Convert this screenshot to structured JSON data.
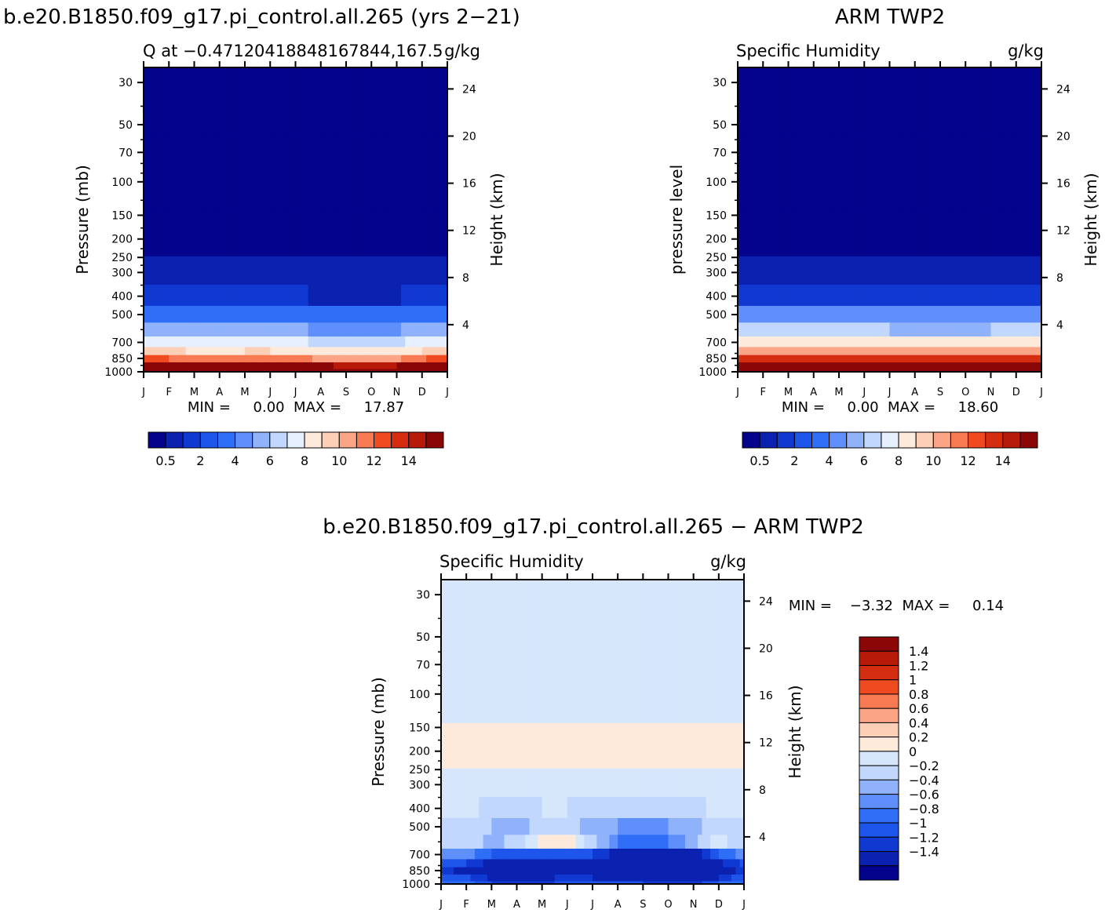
{
  "figure": {
    "top_left_title": "b.e20.B1850.f09_g17.pi_control.all.265 (yrs 2−21)",
    "top_right_title": "ARM TWP2",
    "bottom_title": "b.e20.B1850.f09_g17.pi_control.all.265 − ARM TWP2"
  },
  "chart_data": [
    {
      "type": "heatmap",
      "panel": "model",
      "subtitle": "Q at −0.47120418848167844,167.5",
      "units": "g/kg",
      "ylabel": "Pressure (mb)",
      "ylabel_right": "Height (km)",
      "xlabel": "",
      "x_categories": [
        "J",
        "F",
        "M",
        "A",
        "M",
        "J",
        "J",
        "A",
        "S",
        "O",
        "N",
        "D",
        "J"
      ],
      "y_ticks": [
        30,
        50,
        70,
        100,
        150,
        200,
        250,
        300,
        400,
        500,
        700,
        850,
        1000
      ],
      "y_range": [
        1000,
        25
      ],
      "y_scale": "log",
      "right_ticks_km": [
        4,
        8,
        12,
        16,
        20,
        24
      ],
      "stats_text": "MIN =     0.00  MAX =     17.87",
      "min": 0.0,
      "max": 17.87,
      "colorbar": {
        "colors": [
          "#03038c",
          "#0b21b0",
          "#1039d2",
          "#1e55ea",
          "#2f6ef7",
          "#5e8ffa",
          "#8fb2fb",
          "#c2d7fd",
          "#e6f0fe",
          "#feeadb",
          "#fccfb6",
          "#fba486",
          "#f87a52",
          "#f04b20",
          "#d42d10",
          "#b81a0a",
          "#8b0606"
        ],
        "labels": [
          "0.5",
          "2",
          "4",
          "6",
          "8",
          "10",
          "12",
          "14"
        ]
      },
      "data": {
        "times": [
          "J",
          "F",
          "M",
          "A",
          "M",
          "J",
          "J",
          "A",
          "S",
          "O",
          "N",
          "D",
          "J"
        ],
        "levels": [
          1000,
          925,
          850,
          775,
          700,
          600,
          500,
          400,
          300,
          200,
          100,
          30
        ],
        "values": [
          [
            17.5,
            17.3,
            17.0,
            17.0,
            17.1,
            17.2,
            17.1,
            16.9,
            16.8,
            16.8,
            16.9,
            17.2,
            17.5
          ],
          [
            15.0,
            14.7,
            14.3,
            14.3,
            14.5,
            14.6,
            14.4,
            14.1,
            13.9,
            13.9,
            14.0,
            14.5,
            15.0
          ],
          [
            11.6,
            11.0,
            10.5,
            10.5,
            10.7,
            10.8,
            10.4,
            9.8,
            9.4,
            9.4,
            9.8,
            10.8,
            11.6
          ],
          [
            8.5,
            8.2,
            7.9,
            7.9,
            8.0,
            8.0,
            7.7,
            7.3,
            7.0,
            7.0,
            7.3,
            8.0,
            8.5
          ],
          [
            6.9,
            6.7,
            6.4,
            6.4,
            6.5,
            6.5,
            6.2,
            5.8,
            5.5,
            5.5,
            5.8,
            6.5,
            6.9
          ],
          [
            4.8,
            4.6,
            4.3,
            4.3,
            4.4,
            4.4,
            4.2,
            3.8,
            3.5,
            3.5,
            3.9,
            4.4,
            4.8
          ],
          [
            3.0,
            2.9,
            2.7,
            2.7,
            2.8,
            2.7,
            2.5,
            2.3,
            2.1,
            2.1,
            2.3,
            2.8,
            3.0
          ],
          [
            1.3,
            1.25,
            1.15,
            1.15,
            1.2,
            1.15,
            1.05,
            0.95,
            0.85,
            0.85,
            0.95,
            1.15,
            1.3
          ],
          [
            0.42,
            0.4,
            0.38,
            0.38,
            0.39,
            0.37,
            0.34,
            0.31,
            0.28,
            0.28,
            0.31,
            0.37,
            0.42
          ],
          [
            0.05,
            0.05,
            0.05,
            0.05,
            0.05,
            0.05,
            0.05,
            0.05,
            0.05,
            0.05,
            0.05,
            0.05,
            0.05
          ],
          [
            0.0,
            0.0,
            0.0,
            0.0,
            0.0,
            0.0,
            0.0,
            0.0,
            0.0,
            0.0,
            0.0,
            0.0,
            0.0
          ],
          [
            0.0,
            0.0,
            0.0,
            0.0,
            0.0,
            0.0,
            0.0,
            0.0,
            0.0,
            0.0,
            0.0,
            0.0,
            0.0
          ]
        ]
      }
    },
    {
      "type": "heatmap",
      "panel": "obs",
      "subtitle": "Specific Humidity",
      "units": "g/kg",
      "ylabel": "pressure level",
      "ylabel_right": "Height (km)",
      "xlabel": "",
      "x_categories": [
        "J",
        "F",
        "M",
        "A",
        "M",
        "J",
        "J",
        "A",
        "S",
        "O",
        "N",
        "D",
        "J"
      ],
      "y_ticks": [
        30,
        50,
        70,
        100,
        150,
        200,
        250,
        300,
        400,
        500,
        700,
        850,
        1000
      ],
      "y_range": [
        1000,
        25
      ],
      "y_scale": "log",
      "right_ticks_km": [
        4,
        8,
        12,
        16,
        20,
        24
      ],
      "stats_text": "MIN =     0.00  MAX =     18.60",
      "min": 0.0,
      "max": 18.6,
      "colorbar": {
        "colors": [
          "#03038c",
          "#0b21b0",
          "#1039d2",
          "#1e55ea",
          "#2f6ef7",
          "#5e8ffa",
          "#8fb2fb",
          "#c2d7fd",
          "#e6f0fe",
          "#feeadb",
          "#fccfb6",
          "#fba486",
          "#f87a52",
          "#f04b20",
          "#d42d10",
          "#b81a0a",
          "#8b0606"
        ],
        "labels": [
          "0.5",
          "2",
          "4",
          "6",
          "8",
          "10",
          "12",
          "14"
        ]
      },
      "data": {
        "times": [
          "J",
          "F",
          "M",
          "A",
          "M",
          "J",
          "J",
          "A",
          "S",
          "O",
          "N",
          "D",
          "J"
        ],
        "levels": [
          1000,
          925,
          850,
          775,
          700,
          600,
          500,
          400,
          300,
          200,
          100,
          30
        ],
        "values": [
          [
            18.3,
            18.2,
            18.2,
            18.3,
            18.4,
            18.3,
            18.2,
            18.1,
            18.0,
            18.1,
            18.2,
            18.2,
            18.3
          ],
          [
            16.0,
            15.8,
            15.8,
            15.9,
            16.0,
            15.9,
            15.8,
            15.7,
            15.6,
            15.7,
            15.8,
            15.9,
            16.0
          ],
          [
            12.8,
            12.6,
            12.6,
            12.8,
            12.9,
            12.7,
            12.6,
            12.5,
            12.4,
            12.5,
            12.6,
            12.7,
            12.8
          ],
          [
            9.6,
            9.4,
            9.4,
            9.6,
            9.7,
            9.5,
            9.4,
            9.3,
            9.2,
            9.3,
            9.4,
            9.5,
            9.6
          ],
          [
            7.6,
            7.4,
            7.4,
            7.6,
            7.7,
            7.5,
            7.4,
            7.3,
            7.2,
            7.3,
            7.4,
            7.5,
            7.6
          ],
          [
            5.2,
            5.0,
            5.0,
            5.2,
            5.3,
            5.1,
            5.0,
            4.9,
            4.8,
            4.9,
            5.0,
            5.1,
            5.2
          ],
          [
            3.3,
            3.2,
            3.2,
            3.3,
            3.4,
            3.3,
            3.2,
            3.1,
            3.0,
            3.1,
            3.2,
            3.3,
            3.3
          ],
          [
            1.4,
            1.35,
            1.35,
            1.4,
            1.45,
            1.4,
            1.35,
            1.3,
            1.25,
            1.3,
            1.35,
            1.4,
            1.4
          ],
          [
            0.45,
            0.44,
            0.44,
            0.45,
            0.46,
            0.45,
            0.44,
            0.43,
            0.42,
            0.43,
            0.44,
            0.45,
            0.45
          ],
          [
            0.05,
            0.05,
            0.05,
            0.05,
            0.05,
            0.05,
            0.05,
            0.05,
            0.05,
            0.05,
            0.05,
            0.05,
            0.05
          ],
          [
            0.0,
            0.0,
            0.0,
            0.0,
            0.0,
            0.0,
            0.0,
            0.0,
            0.0,
            0.0,
            0.0,
            0.0,
            0.0
          ],
          [
            0.0,
            0.0,
            0.0,
            0.0,
            0.0,
            0.0,
            0.0,
            0.0,
            0.0,
            0.0,
            0.0,
            0.0,
            0.0
          ]
        ]
      }
    },
    {
      "type": "heatmap",
      "panel": "diff",
      "subtitle": "Specific Humidity",
      "units": "g/kg",
      "ylabel": "Pressure (mb)",
      "ylabel_right": "Height (km)",
      "xlabel": "",
      "x_categories": [
        "J",
        "F",
        "M",
        "A",
        "M",
        "J",
        "J",
        "A",
        "S",
        "O",
        "N",
        "D",
        "J"
      ],
      "y_ticks": [
        30,
        50,
        70,
        100,
        150,
        200,
        250,
        300,
        400,
        500,
        700,
        850,
        1000
      ],
      "y_range": [
        1000,
        25
      ],
      "y_scale": "log",
      "right_ticks_km": [
        4,
        8,
        12,
        16,
        20,
        24
      ],
      "stats_text": "MIN =    −3.32  MAX =     0.14",
      "min": -3.32,
      "max": 0.14,
      "colorbar": {
        "colors": [
          "#03038c",
          "#0b21b0",
          "#1039d2",
          "#1e55ea",
          "#2f6ef7",
          "#5e8ffa",
          "#8fb2fb",
          "#c2d7fd",
          "#d6e7fc",
          "#feeadb",
          "#fccfb6",
          "#fba486",
          "#f87a52",
          "#f04b20",
          "#d42d10",
          "#b81a0a",
          "#8b0606"
        ],
        "labels": [
          "1.4",
          "1.2",
          "1",
          "0.8",
          "0.6",
          "0.4",
          "0.2",
          "0",
          "−0.2",
          "−0.4",
          "−0.6",
          "−0.8",
          "−1",
          "−1.2",
          "−1.4"
        ]
      },
      "data": {
        "times": [
          "J",
          "F",
          "M",
          "A",
          "M",
          "J",
          "J",
          "A",
          "S",
          "O",
          "N",
          "D",
          "J"
        ],
        "levels": [
          1000,
          925,
          850,
          775,
          700,
          600,
          500,
          400,
          300,
          200,
          100,
          30
        ],
        "values": [
          [
            -0.8,
            -0.9,
            -1.2,
            -1.3,
            -1.3,
            -1.1,
            -1.1,
            -1.2,
            -1.2,
            -1.3,
            -1.3,
            -1.0,
            -0.8
          ],
          [
            -1.0,
            -1.1,
            -1.5,
            -1.6,
            -1.5,
            -1.3,
            -1.4,
            -1.6,
            -1.7,
            -1.8,
            -1.8,
            -1.4,
            -1.0
          ],
          [
            -1.2,
            -1.6,
            -2.1,
            -2.3,
            -2.2,
            -1.9,
            -2.2,
            -2.7,
            -3.0,
            -3.1,
            -2.8,
            -1.9,
            -1.2
          ],
          [
            -1.1,
            -1.2,
            -1.5,
            -1.7,
            -1.7,
            -1.5,
            -1.7,
            -2.0,
            -2.2,
            -2.3,
            -2.1,
            -1.5,
            -1.1
          ],
          [
            -0.7,
            -0.7,
            -1.0,
            -1.2,
            -1.2,
            -1.0,
            -1.2,
            -1.5,
            -1.7,
            -1.8,
            -1.6,
            -1.0,
            -0.7
          ],
          [
            -0.4,
            -0.2,
            -0.5,
            -0.3,
            0.05,
            0.1,
            -0.3,
            -0.8,
            -0.9,
            -0.8,
            -0.5,
            -0.1,
            -0.4
          ],
          [
            -0.3,
            -0.2,
            -0.4,
            -0.5,
            -0.3,
            -0.3,
            -0.5,
            -0.6,
            -0.7,
            -0.6,
            -0.5,
            -0.2,
            -0.3
          ],
          [
            -0.1,
            -0.1,
            -0.3,
            -0.3,
            -0.2,
            -0.2,
            -0.3,
            -0.3,
            -0.35,
            -0.3,
            -0.3,
            -0.1,
            -0.1
          ],
          [
            -0.05,
            -0.05,
            -0.05,
            -0.05,
            -0.05,
            -0.05,
            -0.05,
            -0.05,
            -0.05,
            -0.05,
            -0.05,
            -0.05,
            -0.05
          ],
          [
            0.05,
            0.05,
            0.05,
            0.05,
            0.05,
            0.05,
            0.02,
            0.05,
            0.05,
            0.05,
            0.05,
            0.02,
            0.05
          ],
          [
            -0.02,
            -0.02,
            -0.02,
            -0.02,
            -0.02,
            -0.02,
            -0.02,
            -0.02,
            -0.02,
            -0.02,
            -0.02,
            -0.02,
            -0.02
          ],
          [
            -0.01,
            -0.01,
            -0.01,
            -0.01,
            -0.01,
            -0.01,
            -0.01,
            -0.01,
            -0.01,
            -0.01,
            -0.01,
            -0.01,
            -0.01
          ]
        ]
      }
    }
  ]
}
